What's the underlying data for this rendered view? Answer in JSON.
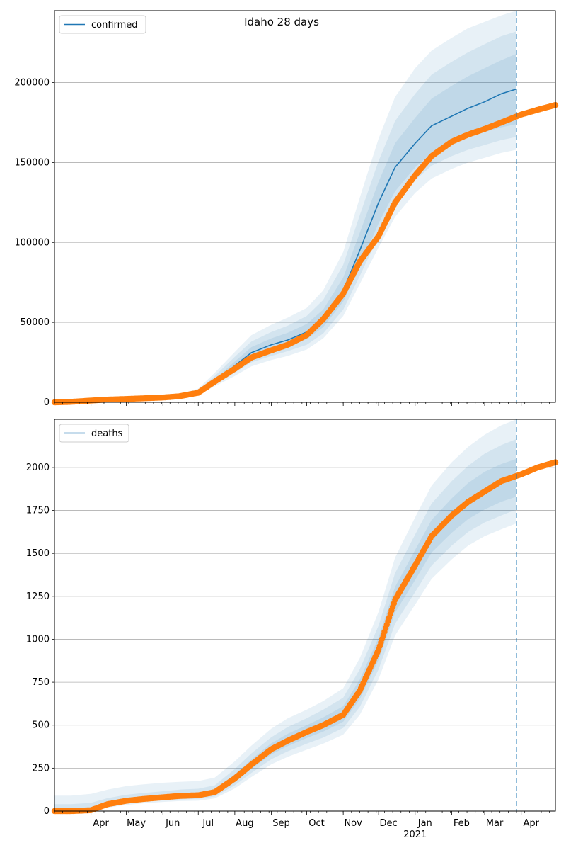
{
  "suptitle": "Idaho 28 days",
  "colors": {
    "model_line": "#1f77b4",
    "observed": "#ff7f0e",
    "band": "#1f77b4",
    "grid": "#b0b0b0",
    "vline": "#1f77b4"
  },
  "x_axis": {
    "min": "2020-03-01",
    "max": "2021-04-30",
    "month_labels": [
      {
        "date": "2020-04-01",
        "label": "Apr"
      },
      {
        "date": "2020-05-01",
        "label": "May"
      },
      {
        "date": "2020-06-01",
        "label": "Jun"
      },
      {
        "date": "2020-07-01",
        "label": "Jul"
      },
      {
        "date": "2020-08-01",
        "label": "Aug"
      },
      {
        "date": "2020-09-01",
        "label": "Sep"
      },
      {
        "date": "2020-10-01",
        "label": "Oct"
      },
      {
        "date": "2020-11-01",
        "label": "Nov"
      },
      {
        "date": "2020-12-01",
        "label": "Dec"
      },
      {
        "date": "2021-01-01",
        "label": "Jan"
      },
      {
        "date": "2021-02-01",
        "label": "Feb"
      },
      {
        "date": "2021-03-01",
        "label": "Mar"
      },
      {
        "date": "2021-04-01",
        "label": "Apr"
      }
    ],
    "year_label": {
      "date": "2021-01-01",
      "label": "2021"
    },
    "forecast_date": "2021-03-28"
  },
  "chart_data": [
    {
      "type": "line",
      "legend": "confirmed",
      "legend_position": "upper-left",
      "grid_y": true,
      "ylim": [
        0,
        245000
      ],
      "yticks": [
        0,
        50000,
        100000,
        150000,
        200000
      ],
      "observed_x": [
        "2020-03-01",
        "2020-03-15",
        "2020-04-01",
        "2020-04-15",
        "2020-05-01",
        "2020-05-15",
        "2020-06-01",
        "2020-06-15",
        "2020-07-01",
        "2020-07-15",
        "2020-08-01",
        "2020-08-15",
        "2020-09-01",
        "2020-09-15",
        "2020-10-01",
        "2020-10-15",
        "2020-11-01",
        "2020-11-15",
        "2020-12-01",
        "2020-12-15",
        "2021-01-01",
        "2021-01-15",
        "2021-02-01",
        "2021-02-15",
        "2021-03-01",
        "2021-03-15",
        "2021-04-01",
        "2021-04-15",
        "2021-04-30"
      ],
      "observed_y": [
        0,
        300,
        1100,
        1700,
        2100,
        2500,
        3000,
        3800,
        6000,
        13000,
        21000,
        28000,
        32500,
        36000,
        42000,
        52000,
        68000,
        88000,
        104000,
        125000,
        142000,
        154000,
        163000,
        167500,
        171000,
        175000,
        180000,
        183000,
        186000
      ],
      "model_x": [
        "2020-06-01",
        "2020-06-15",
        "2020-07-01",
        "2020-07-15",
        "2020-08-01",
        "2020-08-15",
        "2020-09-01",
        "2020-09-15",
        "2020-10-01",
        "2020-10-15",
        "2020-11-01",
        "2020-11-15",
        "2020-12-01",
        "2020-12-15",
        "2021-01-01",
        "2021-01-15",
        "2021-02-01",
        "2021-02-15",
        "2021-03-01",
        "2021-03-15",
        "2021-03-28"
      ],
      "model_y": [
        3000,
        3800,
        6000,
        13000,
        23000,
        31000,
        36000,
        39000,
        44000,
        52000,
        70000,
        95000,
        125000,
        147000,
        162000,
        173000,
        179000,
        184000,
        188000,
        193000,
        196000
      ],
      "band_inner_lo": [
        2800,
        3500,
        5500,
        12000,
        20500,
        27500,
        32000,
        35000,
        39500,
        47000,
        63000,
        85000,
        112000,
        132000,
        147000,
        156000,
        162000,
        166000,
        169000,
        172000,
        174000
      ],
      "band_inner_hi": [
        3200,
        4200,
        6800,
        14500,
        25500,
        34500,
        40000,
        43500,
        49000,
        58000,
        78000,
        106000,
        138000,
        162000,
        178000,
        190000,
        198000,
        204000,
        209000,
        214000,
        218000
      ],
      "band_mid_lo": [
        2600,
        3200,
        5000,
        11000,
        18500,
        25000,
        29000,
        32000,
        36000,
        43000,
        58000,
        79000,
        104000,
        124000,
        139000,
        148000,
        154000,
        158000,
        161000,
        164000,
        166000
      ],
      "band_mid_hi": [
        3500,
        4600,
        7600,
        16500,
        28500,
        38000,
        44000,
        48000,
        54000,
        64000,
        86000,
        117000,
        151000,
        176000,
        193000,
        205000,
        213000,
        219000,
        224000,
        229000,
        232000
      ],
      "band_outer_lo": [
        2400,
        2900,
        4500,
        10000,
        16500,
        22500,
        26500,
        29000,
        33000,
        40000,
        54000,
        74000,
        97000,
        116000,
        131000,
        140000,
        146000,
        150000,
        153000,
        156000,
        158000
      ],
      "band_outer_hi": [
        3800,
        5100,
        8600,
        18500,
        31500,
        42000,
        48500,
        53000,
        59000,
        70000,
        94000,
        128000,
        165000,
        191000,
        209000,
        220000,
        228000,
        234000,
        238000,
        242000,
        245000
      ]
    },
    {
      "type": "line",
      "legend": "deaths",
      "legend_position": "upper-left",
      "grid_y": true,
      "ylim": [
        0,
        2280
      ],
      "yticks": [
        0,
        250,
        500,
        750,
        1000,
        1250,
        1500,
        1750,
        2000
      ],
      "observed_x": [
        "2020-03-01",
        "2020-03-15",
        "2020-04-01",
        "2020-04-15",
        "2020-05-01",
        "2020-05-15",
        "2020-06-01",
        "2020-06-15",
        "2020-07-01",
        "2020-07-15",
        "2020-08-01",
        "2020-08-15",
        "2020-09-01",
        "2020-09-15",
        "2020-10-01",
        "2020-10-15",
        "2020-11-01",
        "2020-11-15",
        "2020-12-01",
        "2020-12-15",
        "2021-01-01",
        "2021-01-15",
        "2021-02-01",
        "2021-02-15",
        "2021-03-01",
        "2021-03-15",
        "2021-04-01",
        "2021-04-15",
        "2021-04-30"
      ],
      "observed_y": [
        0,
        0,
        5,
        40,
        60,
        70,
        80,
        88,
        92,
        110,
        190,
        270,
        360,
        410,
        460,
        500,
        560,
        700,
        940,
        1230,
        1430,
        1600,
        1720,
        1800,
        1860,
        1920,
        1960,
        2000,
        2030
      ],
      "model_x": [
        "2020-03-01",
        "2020-03-15",
        "2020-04-01",
        "2020-04-15",
        "2020-05-01",
        "2020-05-15",
        "2020-06-01",
        "2020-06-15",
        "2020-07-01",
        "2020-07-15",
        "2020-08-01",
        "2020-08-15",
        "2020-09-01",
        "2020-09-15",
        "2020-10-01",
        "2020-10-15",
        "2020-11-01",
        "2020-11-15",
        "2020-12-01",
        "2020-12-15",
        "2021-01-01",
        "2021-01-15",
        "2021-02-01",
        "2021-02-15",
        "2021-03-01",
        "2021-03-15",
        "2021-03-28"
      ],
      "band_inner_lo": [
        0,
        0,
        5,
        35,
        52,
        62,
        70,
        77,
        80,
        96,
        168,
        245,
        330,
        378,
        425,
        462,
        520,
        650,
        880,
        1155,
        1345,
        1505,
        1620,
        1700,
        1755,
        1800,
        1830
      ],
      "band_inner_hi": [
        15,
        15,
        22,
        55,
        72,
        82,
        92,
        100,
        105,
        125,
        215,
        300,
        395,
        450,
        500,
        545,
        610,
        765,
        1010,
        1305,
        1520,
        1695,
        1820,
        1910,
        1975,
        2020,
        2050
      ],
      "band_mid_lo": [
        0,
        0,
        0,
        28,
        44,
        54,
        62,
        68,
        71,
        85,
        150,
        222,
        302,
        348,
        392,
        428,
        484,
        606,
        825,
        1090,
        1275,
        1430,
        1545,
        1625,
        1680,
        1720,
        1755
      ],
      "band_mid_hi": [
        40,
        40,
        48,
        75,
        95,
        105,
        115,
        125,
        130,
        150,
        245,
        335,
        430,
        490,
        540,
        590,
        660,
        825,
        1080,
        1385,
        1610,
        1790,
        1920,
        2010,
        2080,
        2130,
        2165
      ],
      "band_outer_lo": [
        0,
        0,
        0,
        20,
        36,
        45,
        53,
        58,
        60,
        74,
        132,
        198,
        272,
        316,
        357,
        392,
        445,
        560,
        768,
        1022,
        1202,
        1352,
        1465,
        1545,
        1600,
        1640,
        1675
      ],
      "band_outer_hi": [
        90,
        90,
        100,
        125,
        145,
        155,
        165,
        170,
        175,
        195,
        290,
        380,
        480,
        540,
        590,
        640,
        715,
        890,
        1160,
        1475,
        1710,
        1895,
        2030,
        2120,
        2190,
        2245,
        2280
      ]
    }
  ]
}
